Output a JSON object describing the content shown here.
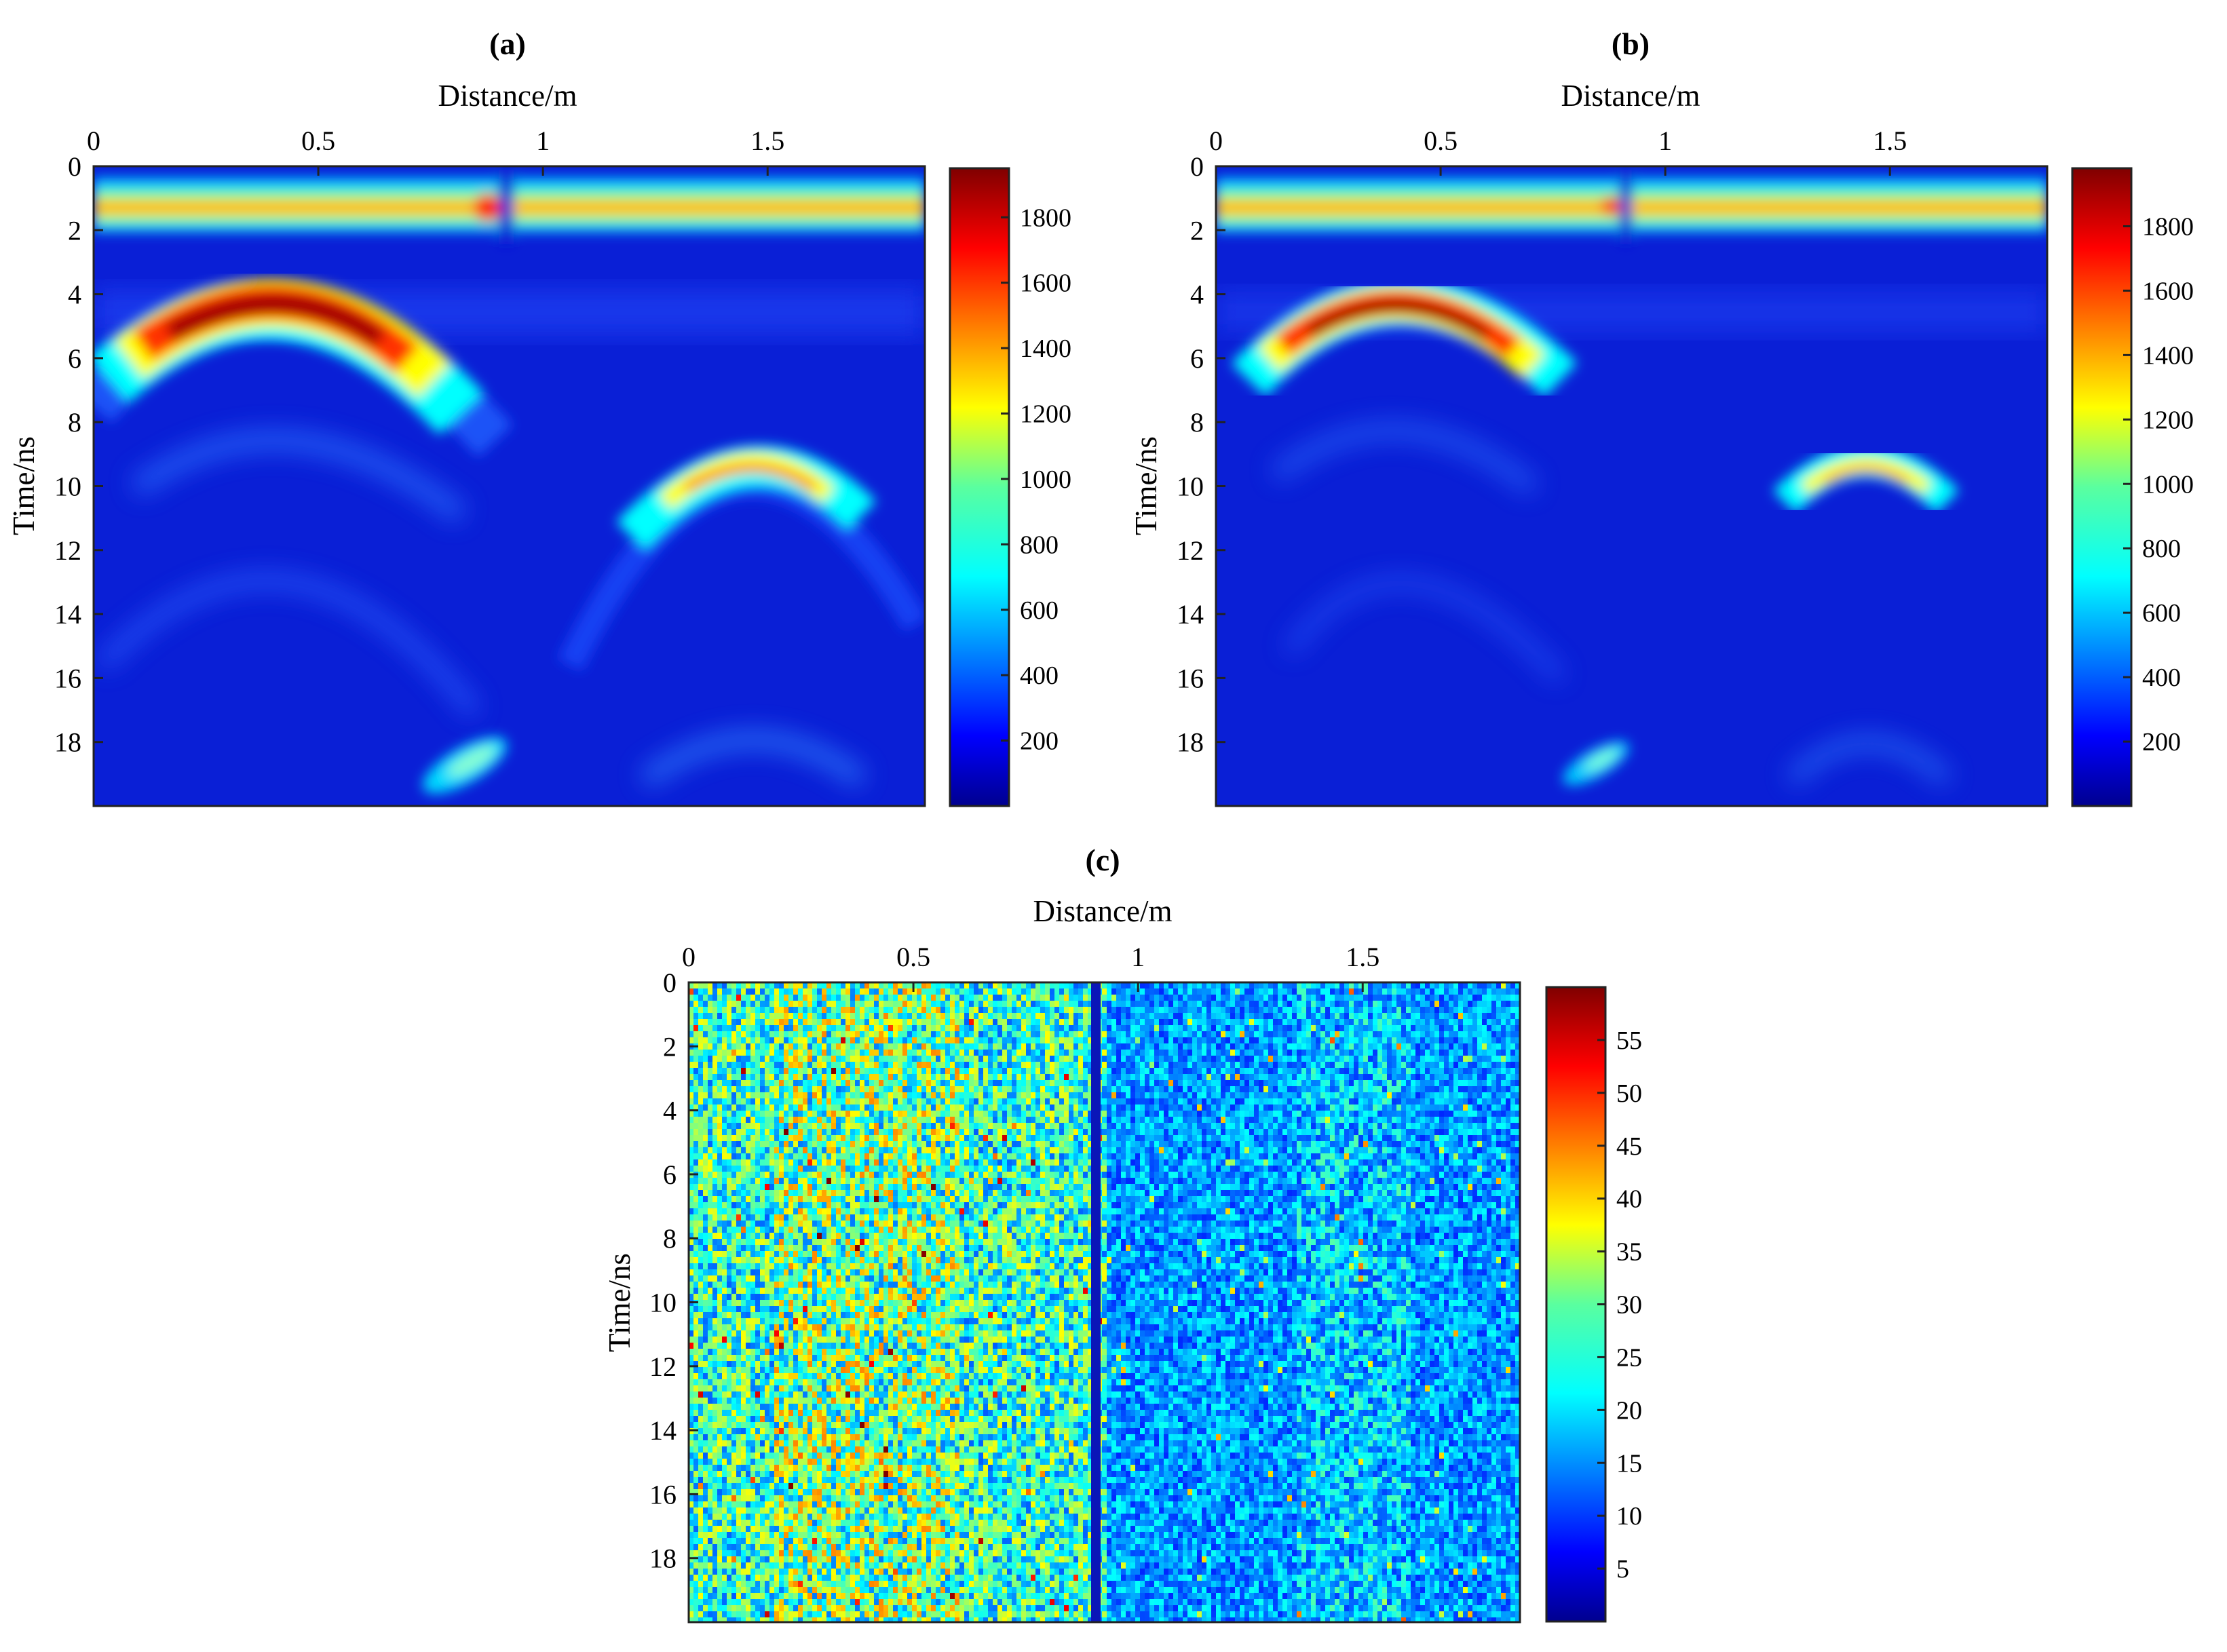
{
  "chart_data": [
    {
      "type": "heatmap",
      "panel": "(a)",
      "title": "(a)",
      "xlabel": "Distance/m",
      "ylabel": "Time/ns",
      "x_ticks": [
        "0",
        "0.5",
        "1",
        "1.5"
      ],
      "y_ticks": [
        "0",
        "2",
        "4",
        "6",
        "8",
        "10",
        "12",
        "14",
        "16",
        "18"
      ],
      "xlim": [
        0,
        1.85
      ],
      "ylim": [
        0,
        20
      ],
      "colorbar_ticks": [
        "200",
        "400",
        "600",
        "800",
        "1000",
        "1200",
        "1400",
        "1600",
        "1800"
      ],
      "colorbar_range": [
        0,
        1950
      ],
      "colormap": "jet",
      "features": [
        {
          "kind": "direct_wave",
          "t_ns": 1.3,
          "amplitude": 1200,
          "gap_x_m": 0.94
        },
        {
          "kind": "hyperbola",
          "apex_x_m": 0.42,
          "apex_t_ns": 4.7,
          "amplitude": 1900
        },
        {
          "kind": "hyperbola",
          "apex_x_m": 1.45,
          "apex_t_ns": 9.8,
          "amplitude": 1300
        },
        {
          "kind": "hyperbola_multiple",
          "apex_x_m": 0.42,
          "apex_t_ns": 12.5,
          "amplitude": 300
        },
        {
          "kind": "hyperbola_multiple",
          "apex_x_m": 1.45,
          "apex_t_ns": 18.5,
          "amplitude": 350
        },
        {
          "kind": "blob",
          "x_m": 0.83,
          "t_ns": 18.8,
          "amplitude": 800
        }
      ]
    },
    {
      "type": "heatmap",
      "panel": "(b)",
      "title": "(b)",
      "xlabel": "Distance/m",
      "ylabel": "Time/ns",
      "x_ticks": [
        "0",
        "0.5",
        "1",
        "1.5"
      ],
      "y_ticks": [
        "0",
        "2",
        "4",
        "6",
        "8",
        "10",
        "12",
        "14",
        "16",
        "18"
      ],
      "xlim": [
        0,
        1.85
      ],
      "ylim": [
        0,
        20
      ],
      "colorbar_ticks": [
        "200",
        "400",
        "600",
        "800",
        "1000",
        "1200",
        "1400",
        "1600",
        "1800"
      ],
      "colorbar_range": [
        0,
        1980
      ],
      "colormap": "jet",
      "features": [
        {
          "kind": "direct_wave",
          "t_ns": 1.3,
          "amplitude": 1250,
          "gap_x_m": 0.93
        },
        {
          "kind": "hyperbola",
          "apex_x_m": 0.42,
          "apex_t_ns": 4.6,
          "amplitude": 1950
        },
        {
          "kind": "hyperbola",
          "apex_x_m": 1.45,
          "apex_t_ns": 9.9,
          "amplitude": 1200
        },
        {
          "kind": "hyperbola_multiple",
          "apex_x_m": 0.42,
          "apex_t_ns": 12.5,
          "amplitude": 250
        },
        {
          "kind": "hyperbola_multiple",
          "apex_x_m": 1.45,
          "apex_t_ns": 18.5,
          "amplitude": 300
        },
        {
          "kind": "blob",
          "x_m": 0.85,
          "t_ns": 18.7,
          "amplitude": 650
        }
      ]
    },
    {
      "type": "heatmap",
      "panel": "(c)",
      "title": "(c)",
      "xlabel": "Distance/m",
      "ylabel": "Time/ns",
      "x_ticks": [
        "0",
        "0.5",
        "1",
        "1.5"
      ],
      "y_ticks": [
        "0",
        "2",
        "4",
        "6",
        "8",
        "10",
        "12",
        "14",
        "16",
        "18"
      ],
      "xlim": [
        0,
        1.85
      ],
      "ylim": [
        0,
        20
      ],
      "colorbar_ticks": [
        "5",
        "10",
        "15",
        "20",
        "25",
        "30",
        "35",
        "40",
        "45",
        "50",
        "55"
      ],
      "colorbar_range": [
        0,
        60
      ],
      "colormap": "jet",
      "features": [
        {
          "kind": "noise_field",
          "mean_left": 22,
          "mean_right": 12,
          "split_x_m": 0.93,
          "max": 58
        },
        {
          "kind": "dark_column",
          "x_m": 0.92
        }
      ]
    }
  ]
}
